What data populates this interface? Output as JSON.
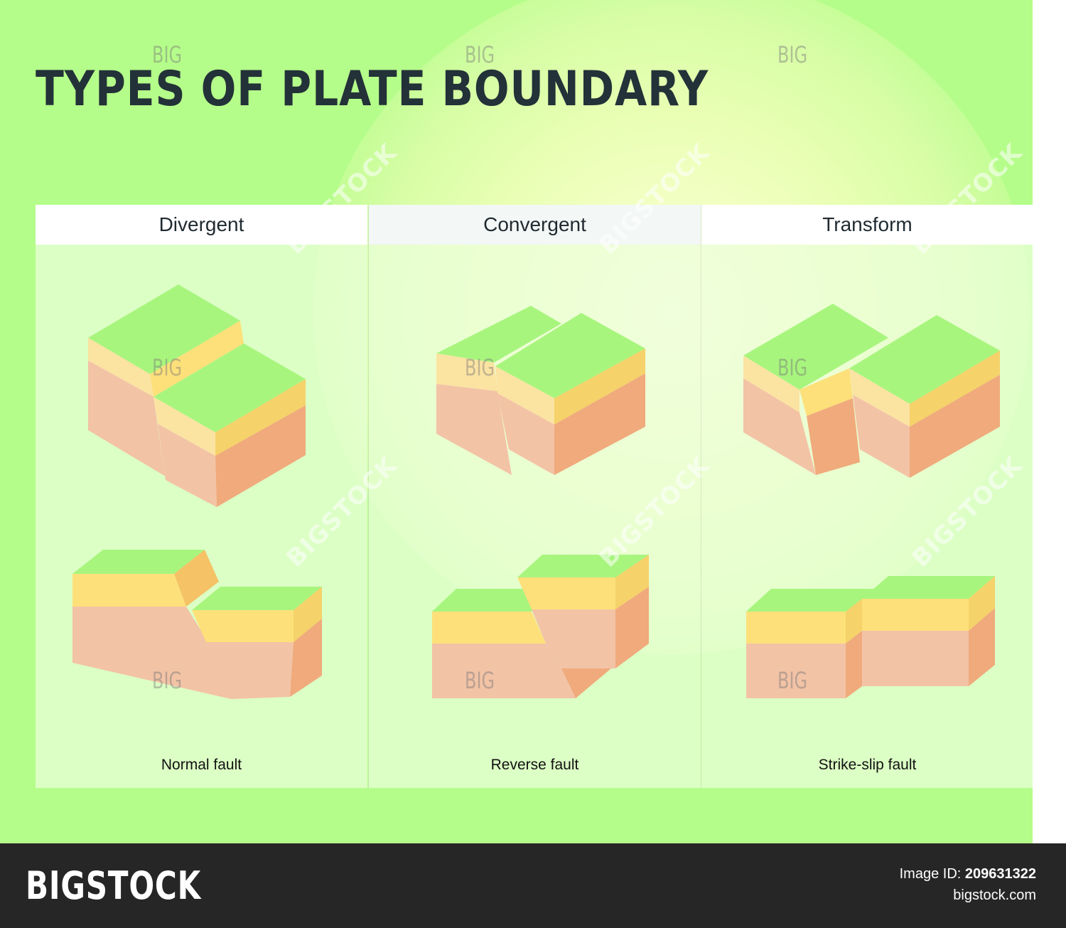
{
  "title": "TYPES OF PLATE BOUNDARY",
  "columns": [
    {
      "header": "Divergent",
      "caption": "Normal fault"
    },
    {
      "header": "Convergent",
      "caption": "Reverse fault"
    },
    {
      "header": "Transform",
      "caption": "Strike-slip fault"
    }
  ],
  "watermark": {
    "small": "BIG",
    "large": "BIGSTOCK"
  },
  "footer": {
    "brand": "BIGSTOCK",
    "image_id_label": "Image ID:",
    "image_id": "209631322",
    "site": "bigstock.com"
  },
  "colors": {
    "background": "#b5fd8a",
    "grass": "#a8f57e",
    "sand_top": "#fde07a",
    "sand_side": "#f5d26a",
    "rock_front": "#f3c3a6",
    "rock_side": "#f0aa7c",
    "footer": "#262626"
  }
}
